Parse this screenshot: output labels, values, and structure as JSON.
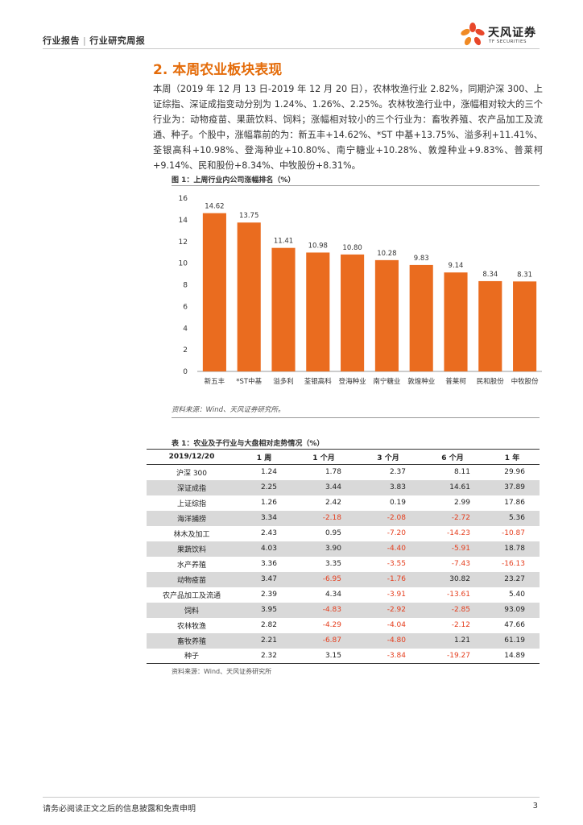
{
  "header": {
    "left_label": "行业报告",
    "separator": "|",
    "right_label": "行业研究周报",
    "logo_cn": "天风证券",
    "logo_en": "TF SECURITIES"
  },
  "section": {
    "title": "2. 本周农业板块表现",
    "paragraph": "本周（2019 年 12 月 13 日-2019 年 12 月 20 日），农林牧渔行业 2.82%，同期沪深 300、上证综指、深证成指变动分别为 1.24%、1.26%、2.25%。农林牧渔行业中，涨幅相对较大的三个行业为：动物疫苗、果蔬饮料、饲料；涨幅相对较小的三个行业为：畜牧养殖、农产品加工及流通、种子。个股中，涨幅靠前的为：新五丰+14.62%、*ST 中基+13.75%、溢多利+11.41%、荃银高科+10.98%、登海种业+10.80%、南宁糖业+10.28%、敦煌种业+9.83%、普莱柯+9.14%、民和股份+8.34%、中牧股份+8.31%。"
  },
  "figure": {
    "title": "图 1：上周行业内公司涨幅排名（%）",
    "source": "资料来源：Wind、天风证券研究所。"
  },
  "chart_data": {
    "type": "bar",
    "title": "",
    "categories": [
      "新五丰",
      "*ST中基",
      "溢多利",
      "荃银高科",
      "登海种业",
      "南宁糖业",
      "敦煌种业",
      "普莱柯",
      "民和股份",
      "中牧股份"
    ],
    "values": [
      14.62,
      13.75,
      11.41,
      10.98,
      10.8,
      10.28,
      9.83,
      9.14,
      8.34,
      8.31
    ],
    "data_labels": [
      "14.62",
      "13.75",
      "11.41",
      "10.98",
      "10.80",
      "10.28",
      "9.83",
      "9.14",
      "8.34",
      "8.31"
    ],
    "yticks": [
      "0",
      "2",
      "4",
      "6",
      "8",
      "10",
      "12",
      "14",
      "16"
    ],
    "ylim": [
      0,
      16
    ],
    "color": "#ea6c1f",
    "grid": false,
    "legend": "none"
  },
  "table": {
    "title": "表 1：农业及子行业与大盘相对走势情况（%）",
    "headers": [
      "2019/12/20",
      "1 周",
      "1 个月",
      "3 个月",
      "6 个月",
      "1 年"
    ],
    "rows": [
      [
        "沪深 300",
        "1.24",
        "1.78",
        "2.37",
        "8.11",
        "29.96"
      ],
      [
        "深证成指",
        "2.25",
        "3.44",
        "3.83",
        "14.61",
        "37.89"
      ],
      [
        "上证综指",
        "1.26",
        "2.42",
        "0.19",
        "2.99",
        "17.86"
      ],
      [
        "海洋捕捞",
        "3.34",
        "-2.18",
        "-2.08",
        "-2.72",
        "5.36"
      ],
      [
        "林木及加工",
        "2.43",
        "0.95",
        "-7.20",
        "-14.23",
        "-10.87"
      ],
      [
        "果蔬饮料",
        "4.03",
        "3.90",
        "-4.40",
        "-5.91",
        "18.78"
      ],
      [
        "水产养殖",
        "3.36",
        "3.35",
        "-3.55",
        "-7.43",
        "-16.13"
      ],
      [
        "动物疫苗",
        "3.47",
        "-6.95",
        "-1.76",
        "30.82",
        "23.27"
      ],
      [
        "农产品加工及流通",
        "2.39",
        "4.34",
        "-3.91",
        "-13.61",
        "5.40"
      ],
      [
        "饲料",
        "3.95",
        "-4.83",
        "-2.92",
        "-2.85",
        "93.09"
      ],
      [
        "农林牧渔",
        "2.82",
        "-4.29",
        "-4.04",
        "-2.12",
        "47.66"
      ],
      [
        "畜牧养殖",
        "2.21",
        "-6.87",
        "-4.80",
        "1.21",
        "61.19"
      ],
      [
        "种子",
        "2.32",
        "3.15",
        "-3.84",
        "-19.27",
        "14.89"
      ]
    ],
    "negative_color": "#e53e1e",
    "source": "资料来源：Wind、天风证券研究所"
  },
  "footer": {
    "disclaimer": "请务必阅读正文之后的信息披露和免责申明",
    "page_number": "3"
  }
}
